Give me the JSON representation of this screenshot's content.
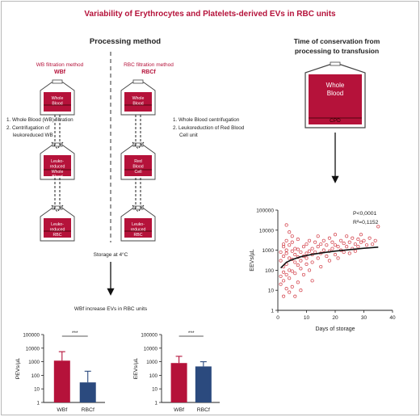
{
  "title": "Variability of Erythrocytes and Platelets-derived EVs in RBC units",
  "processing": {
    "heading": "Processing method",
    "wb_method": {
      "line1": "WB filtration method",
      "abbr": "WBf"
    },
    "rbc_method": {
      "line1": "RBC filtration method",
      "abbr": "RBCf"
    },
    "wb_steps": [
      "1.  Whole Blood (WB) filtration",
      "2.  Centrifugation of",
      "leukoreduced WB"
    ],
    "rbc_steps": [
      "1.  Whole Blood centrifugation",
      "2.  Leukoreduction of Red Blood",
      "Cell unit"
    ],
    "bags": {
      "wb_top": [
        "Whole",
        "Blood"
      ],
      "wb_mid": [
        "Leuko-",
        "reduced",
        "Whole",
        "Blood"
      ],
      "wb_bottom": [
        "Leuko-",
        "reduced",
        "RBC"
      ],
      "rbc_top": [
        "Whole",
        "Blood"
      ],
      "rbc_mid": [
        "Red",
        "Blood",
        "Cell"
      ],
      "rbc_bottom": [
        "Leuko-",
        "reduced",
        "RBC"
      ]
    },
    "storage": "Storage at 4°C",
    "conclusion": "WBf increase EVs in RBC units"
  },
  "conservation": {
    "heading_line1": "Time of conservation from",
    "heading_line2": "processing to transfusion",
    "bag": [
      "Whole",
      "Blood"
    ],
    "bag_code": "CPD"
  },
  "colors": {
    "red": "#b5123a",
    "navy": "#2b4a7e",
    "scatter": "#d23c46"
  },
  "chart_data": [
    {
      "type": "scatter",
      "title": "",
      "xlabel": "Days of storage",
      "ylabel": "EEVs/µL",
      "xlim": [
        0,
        40
      ],
      "ylim": [
        1,
        100000
      ],
      "y_scale": "log",
      "x_ticks": [
        "0",
        "10",
        "20",
        "30",
        "40"
      ],
      "y_ticks": [
        "1",
        "10",
        "100",
        "1000",
        "10000",
        "100000"
      ],
      "annotations": [
        "P<0,0001",
        "R²=0,1152"
      ],
      "trend_line": {
        "x": [
          1,
          3,
          5,
          8,
          12,
          16,
          20,
          25,
          30,
          35
        ],
        "y": [
          130,
          250,
          340,
          470,
          620,
          760,
          900,
          1070,
          1250,
          1420
        ]
      },
      "points": {
        "x": [
          1,
          1,
          1,
          1,
          2,
          2,
          2,
          2,
          2,
          2,
          3,
          3,
          3,
          3,
          3,
          3,
          4,
          4,
          4,
          4,
          4,
          5,
          5,
          5,
          5,
          5,
          5,
          6,
          6,
          6,
          6,
          7,
          7,
          7,
          7,
          7,
          8,
          8,
          8,
          9,
          9,
          9,
          10,
          10,
          10,
          10,
          11,
          11,
          11,
          12,
          12,
          12,
          13,
          13,
          14,
          14,
          14,
          15,
          15,
          15,
          16,
          16,
          17,
          17,
          18,
          18,
          18,
          19,
          19,
          20,
          20,
          20,
          21,
          21,
          22,
          22,
          23,
          23,
          24,
          24,
          25,
          25,
          26,
          26,
          27,
          27,
          28,
          28,
          29,
          29,
          30,
          31,
          32,
          33,
          34,
          35,
          2,
          4,
          6,
          8,
          12,
          3
        ],
        "y": [
          50,
          300,
          800,
          20,
          150,
          500,
          1500,
          30,
          2000,
          80,
          200,
          700,
          3000,
          12,
          60,
          1000,
          100,
          400,
          1800,
          40,
          8000,
          90,
          350,
          900,
          2500,
          15,
          5000,
          250,
          600,
          1200,
          70,
          180,
          450,
          1100,
          3500,
          25,
          300,
          800,
          120,
          500,
          1500,
          60,
          200,
          700,
          2000,
          400,
          900,
          3000,
          100,
          600,
          1200,
          250,
          800,
          2500,
          400,
          1500,
          5000,
          150,
          700,
          2000,
          1000,
          3000,
          500,
          1800,
          300,
          900,
          4000,
          1200,
          2500,
          600,
          1800,
          6000,
          400,
          1500,
          1000,
          3000,
          800,
          2200,
          1500,
          5000,
          700,
          2500,
          1200,
          4000,
          2000,
          900,
          1500,
          3500,
          2500,
          6000,
          3000,
          1800,
          4000,
          2000,
          3000,
          15000,
          5,
          8,
          5,
          10,
          30,
          18000
        ]
      }
    },
    {
      "type": "bar",
      "title": "",
      "xlabel": "",
      "ylabel": "PEVs/µL",
      "y_scale": "log",
      "ylim": [
        1,
        100000
      ],
      "y_ticks": [
        "1",
        "10",
        "100",
        "1000",
        "10000",
        "100000"
      ],
      "categories": [
        "WBf",
        "RBCf"
      ],
      "values": [
        1200,
        30
      ],
      "error_upper": [
        5500,
        200
      ],
      "significance": "***"
    },
    {
      "type": "bar",
      "title": "",
      "xlabel": "",
      "ylabel": "EEVs/µL",
      "y_scale": "log",
      "ylim": [
        1,
        100000
      ],
      "y_ticks": [
        "1",
        "10",
        "100",
        "1000",
        "10000",
        "100000"
      ],
      "categories": [
        "WBf",
        "RBCf"
      ],
      "values": [
        800,
        450
      ],
      "error_upper": [
        2500,
        1000
      ],
      "significance": "***"
    }
  ]
}
